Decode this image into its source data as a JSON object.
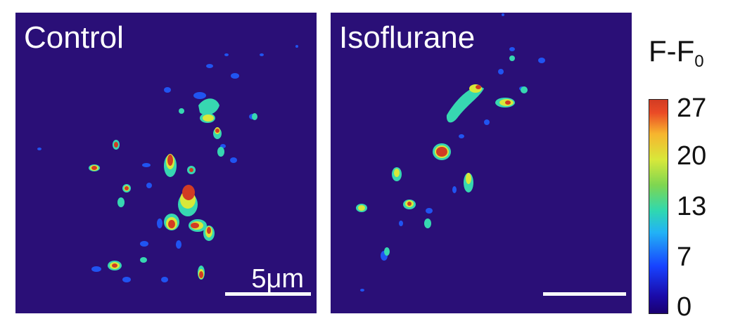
{
  "panels": {
    "control": {
      "label": "Control",
      "scale_label": "5μm"
    },
    "isoflurane": {
      "label": "Isoflurane"
    }
  },
  "colorbar": {
    "title": "F-F",
    "title_sub": "0",
    "ticks": [
      "27",
      "20",
      "13",
      "7",
      "0"
    ]
  },
  "colors": {
    "background": "#2a0f77",
    "low": "#1742ff",
    "mid": "#2fd8b0",
    "high_mid": "#d8e83a",
    "high": "#d23c23"
  }
}
